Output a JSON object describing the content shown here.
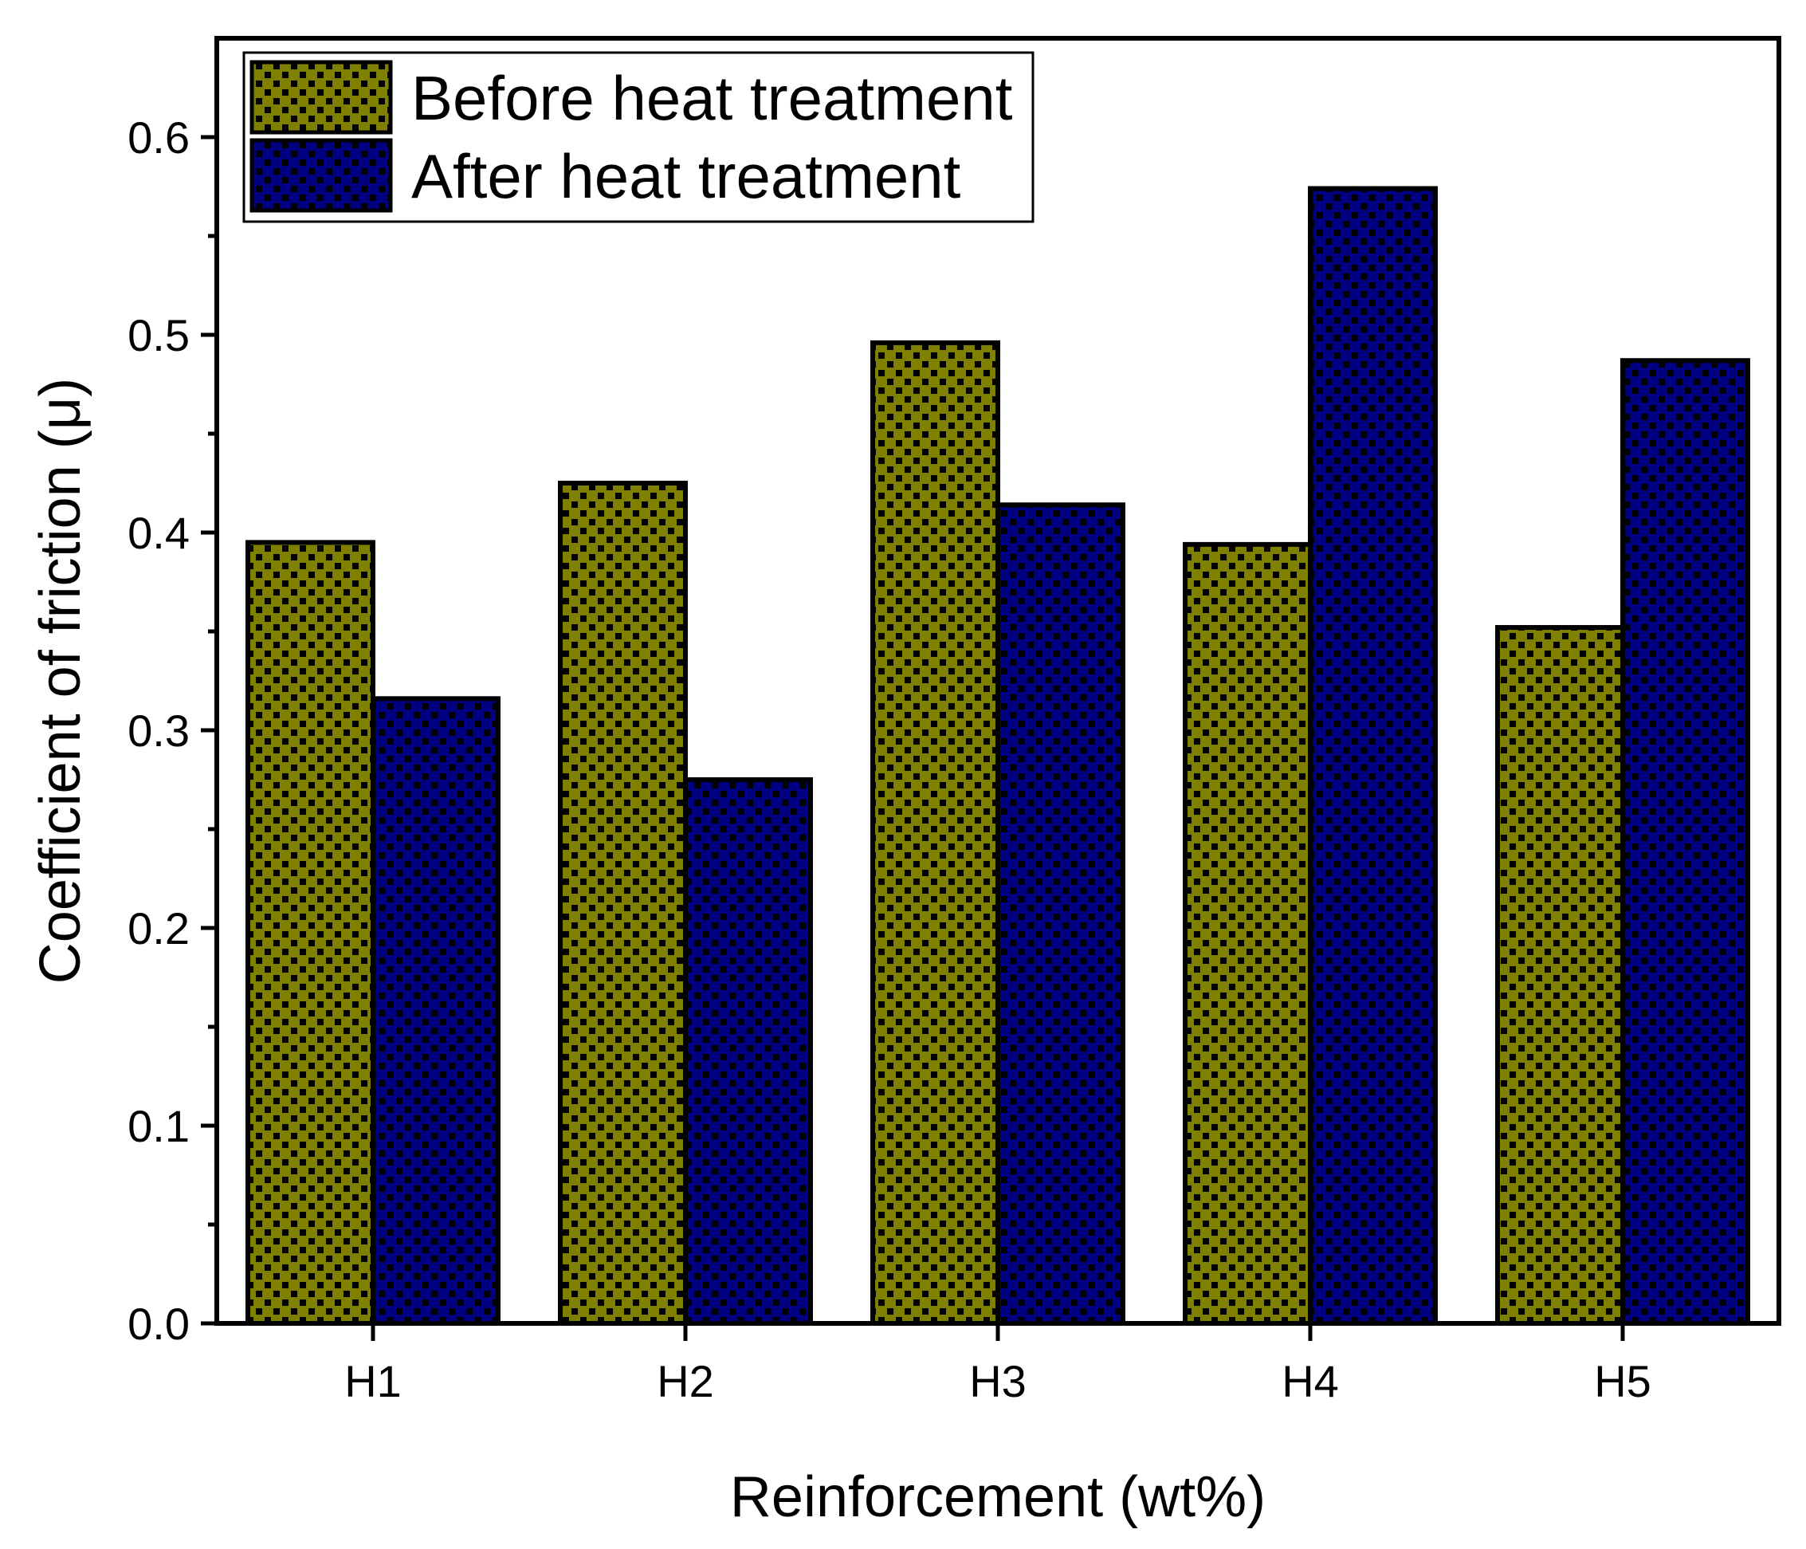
{
  "chart_data": {
    "type": "bar",
    "title": "",
    "xlabel": "Reinforcement (wt%)",
    "ylabel": "Coefficient of friction (μ)",
    "categories": [
      "H1",
      "H2",
      "H3",
      "H4",
      "H5"
    ],
    "series": [
      {
        "name": "Before heat treatment",
        "values": [
          0.395,
          0.425,
          0.496,
          0.394,
          0.352
        ],
        "color": "#808000"
      },
      {
        "name": "After heat treatment",
        "values": [
          0.316,
          0.275,
          0.414,
          0.574,
          0.487
        ],
        "color": "#000080"
      }
    ],
    "ylim": [
      0,
      0.65
    ],
    "yticks": [
      {
        "value": 0.0,
        "label": "0.0"
      },
      {
        "value": 0.1,
        "label": "0.1"
      },
      {
        "value": 0.2,
        "label": "0.2"
      },
      {
        "value": 0.3,
        "label": "0.3"
      },
      {
        "value": 0.4,
        "label": "0.4"
      },
      {
        "value": 0.5,
        "label": "0.5"
      },
      {
        "value": 0.6,
        "label": "0.6"
      }
    ],
    "grid": false,
    "legend_position": "top-left",
    "pattern": "checkered"
  }
}
